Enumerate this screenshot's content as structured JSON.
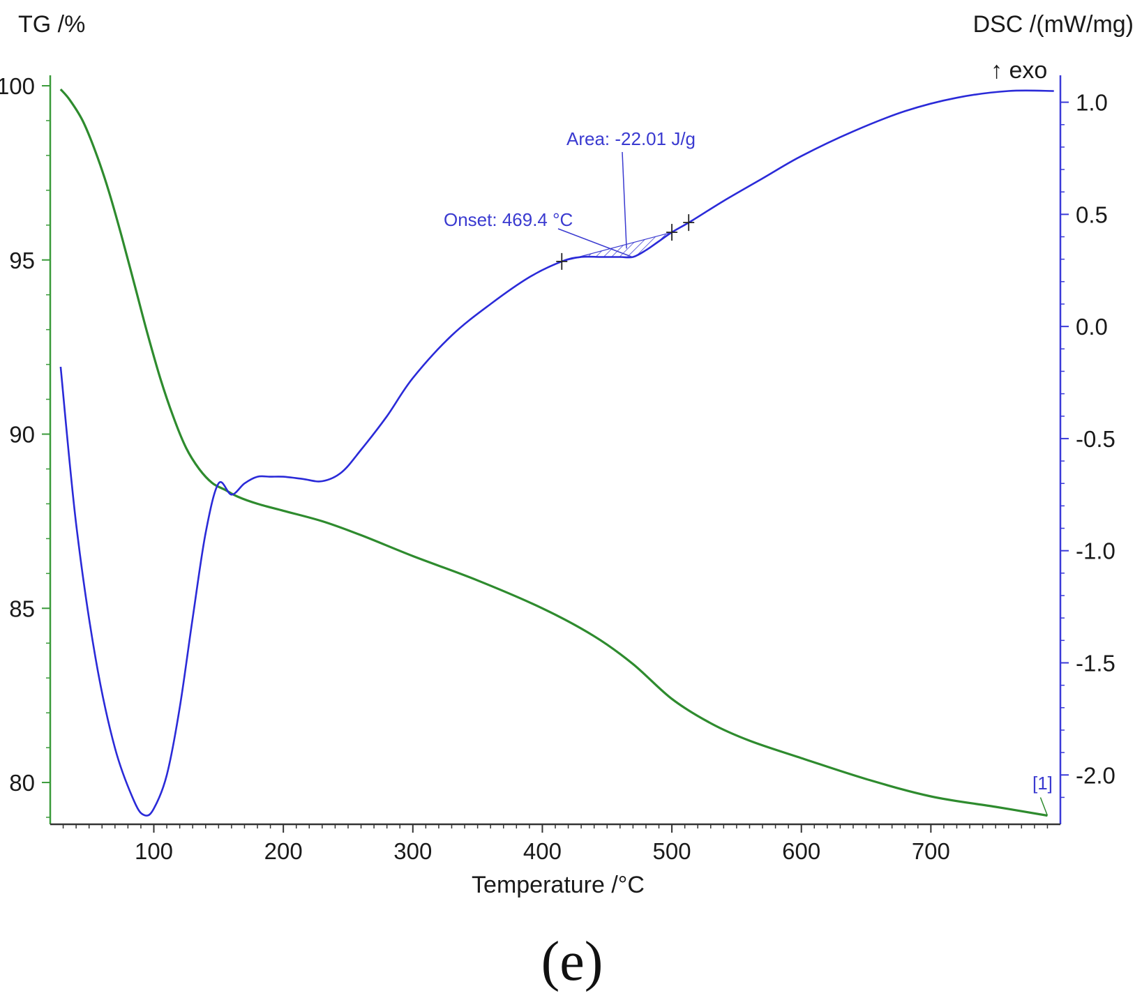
{
  "colors": {
    "tg": "#2e8b2e",
    "dsc": "#2a2ad8",
    "annotation": "#3a3ad0",
    "axis_left": "#3a9a3a",
    "axis_right": "#3a3ad8",
    "axis_bottom": "#333333"
  },
  "chart_data": {
    "type": "line",
    "title": "",
    "caption": "(e)",
    "xlabel": "Temperature /°C",
    "ylabel_left": "TG /%",
    "ylabel_right": "DSC /(mW/mg)",
    "exo_label": "↑ exo",
    "xlim": [
      20,
      800
    ],
    "ylim_left": [
      78.8,
      100.3
    ],
    "ylim_right": [
      -2.22,
      1.12
    ],
    "x_ticks": [
      100,
      200,
      300,
      400,
      500,
      600,
      700
    ],
    "x_tick_labels": [
      "100",
      "200",
      "300",
      "400",
      "500",
      "600",
      "700"
    ],
    "y_left_ticks": [
      100,
      95,
      90,
      85,
      80
    ],
    "y_left_tick_labels": [
      "100",
      "95",
      "90",
      "85",
      "80"
    ],
    "y_right_ticks": [
      1.0,
      0.5,
      0.0,
      -0.5,
      -1.0,
      -1.5,
      -2.0
    ],
    "y_right_tick_labels": [
      "1.0",
      "0.5",
      "0.0",
      "-0.5",
      "-1.0",
      "-1.5",
      "-2.0"
    ],
    "series": [
      {
        "name": "TG",
        "axis": "left",
        "label": "[1]",
        "x": [
          28,
          35,
          45,
          55,
          65,
          75,
          85,
          95,
          105,
          115,
          125,
          135,
          145,
          155,
          165,
          180,
          200,
          230,
          260,
          300,
          350,
          400,
          440,
          470,
          500,
          530,
          560,
          600,
          650,
          700,
          750,
          790
        ],
        "y": [
          99.9,
          99.6,
          99.0,
          98.1,
          97.0,
          95.7,
          94.3,
          92.9,
          91.6,
          90.5,
          89.6,
          89.0,
          88.6,
          88.4,
          88.2,
          88.0,
          87.8,
          87.5,
          87.1,
          86.5,
          85.8,
          85.0,
          84.2,
          83.4,
          82.4,
          81.7,
          81.2,
          80.7,
          80.1,
          79.6,
          79.3,
          79.05
        ]
      },
      {
        "name": "DSC",
        "axis": "right",
        "x": [
          28,
          40,
          55,
          70,
          85,
          93,
          100,
          110,
          120,
          130,
          140,
          150,
          160,
          170,
          180,
          190,
          200,
          215,
          230,
          245,
          260,
          280,
          300,
          330,
          360,
          390,
          415,
          430,
          445,
          460,
          470,
          480,
          490,
          500,
          515,
          540,
          570,
          600,
          640,
          680,
          720,
          760,
          795
        ],
        "y": [
          -0.18,
          -0.88,
          -1.48,
          -1.88,
          -2.12,
          -2.18,
          -2.15,
          -2.0,
          -1.7,
          -1.3,
          -0.92,
          -0.7,
          -0.75,
          -0.7,
          -0.67,
          -0.67,
          -0.67,
          -0.68,
          -0.69,
          -0.65,
          -0.55,
          -0.4,
          -0.23,
          -0.04,
          0.1,
          0.22,
          0.29,
          0.31,
          0.31,
          0.31,
          0.31,
          0.34,
          0.38,
          0.42,
          0.47,
          0.56,
          0.66,
          0.76,
          0.87,
          0.96,
          1.02,
          1.05,
          1.05
        ]
      }
    ],
    "annotations": {
      "area_label": "Area: -22.01 J/g",
      "onset_label": "Onset: 469.4 °C",
      "peak_start_x": 415,
      "peak_end_x": 500,
      "marker_x": [
        415,
        500,
        513
      ]
    }
  }
}
